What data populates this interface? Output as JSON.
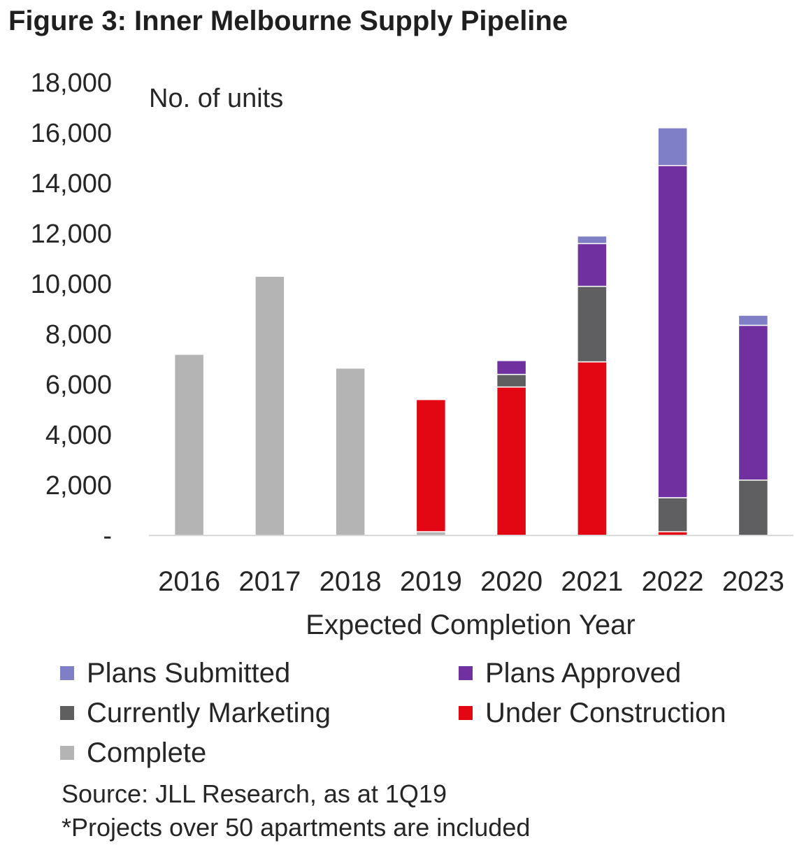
{
  "title": "Figure 3: Inner Melbourne  Supply Pipeline",
  "chart_data": {
    "type": "bar",
    "stacked": true,
    "title": "Figure 3: Inner Melbourne  Supply Pipeline",
    "ylabel": "No. of units",
    "xlabel": "Expected  Completion Year",
    "ylim": [
      0,
      18000
    ],
    "yticks": [
      0,
      2000,
      4000,
      6000,
      8000,
      10000,
      12000,
      14000,
      16000,
      18000
    ],
    "ytick_labels": [
      "-",
      "2,000",
      "4,000",
      "6,000",
      "8,000",
      "10,000",
      "12,000",
      "14,000",
      "16,000",
      "18,000"
    ],
    "categories": [
      "2016",
      "2017",
      "2018",
      "2019",
      "2020",
      "2021",
      "2022",
      "2023"
    ],
    "grid": false,
    "legend_position": "bottom",
    "series": [
      {
        "name": "Complete",
        "color": "#b4b4b4",
        "values": [
          7200,
          10300,
          6650,
          150,
          0,
          0,
          0,
          0
        ]
      },
      {
        "name": "Under Construction",
        "color": "#e30613",
        "values": [
          0,
          0,
          0,
          5250,
          5900,
          6900,
          150,
          0
        ]
      },
      {
        "name": "Currently Marketing",
        "color": "#5f5f62",
        "values": [
          0,
          0,
          0,
          0,
          500,
          3000,
          1350,
          2200
        ]
      },
      {
        "name": "Plans Approved",
        "color": "#7030a0",
        "values": [
          0,
          0,
          0,
          0,
          550,
          1700,
          13200,
          6150
        ]
      },
      {
        "name": "Plans Submitted",
        "color": "#7f7fc7",
        "values": [
          0,
          0,
          0,
          0,
          0,
          300,
          1500,
          400
        ]
      }
    ]
  },
  "legend": [
    {
      "label": "Plans Submitted",
      "color": "#7f7fc7"
    },
    {
      "label": "Plans Approved",
      "color": "#7030a0"
    },
    {
      "label": "Currently Marketing",
      "color": "#5f5f62"
    },
    {
      "label": "Under Construction",
      "color": "#e30613"
    },
    {
      "label": "Complete",
      "color": "#b4b4b4"
    }
  ],
  "notes": {
    "source": "Source:  JLL Research, as at 1Q19",
    "footnote": "*Projects  over 50 apartments  are included"
  }
}
